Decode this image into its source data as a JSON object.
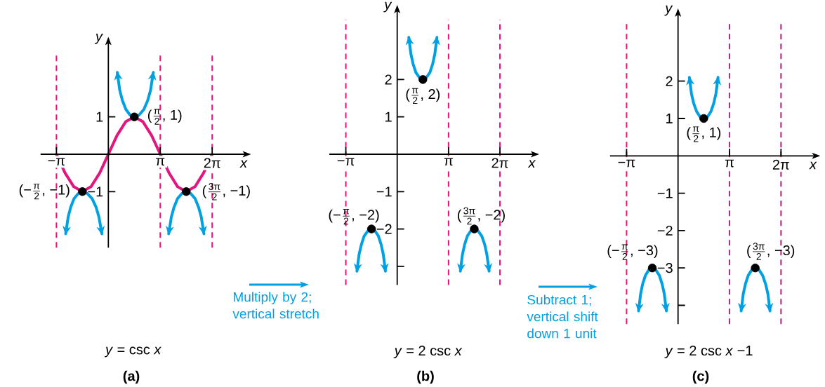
{
  "chart_data": [
    {
      "type": "line",
      "title": "*y* = csc *x*",
      "subtitle": "(a)",
      "xlabel": "x",
      "ylabel": "y",
      "xlim": [
        -4.1,
        8.5
      ],
      "ylim": [
        -2.5,
        2.75
      ],
      "xticks": [
        {
          "value": -3.14,
          "label": "−π"
        },
        {
          "value": 3.14,
          "label": "π"
        },
        {
          "value": 6.28,
          "label": "2π"
        }
      ],
      "yticks": [
        {
          "value": -1,
          "label": "−1"
        },
        1
      ],
      "ref_lines": [
        {
          "axis": "x",
          "value": -3.14,
          "color": "#e3157e",
          "line_style": "dashed"
        },
        {
          "axis": "x",
          "value": 3.14,
          "color": "#e3157e",
          "line_style": "dashed"
        },
        {
          "axis": "x",
          "value": 6.28,
          "color": "#e3157e",
          "line_style": "dashed"
        }
      ],
      "series": [
        {
          "color": "#e3157e",
          "x": [
            -3.14,
            -2.62,
            -2.09,
            -1.57,
            -1.05,
            -0.52,
            0,
            0.52,
            1.05,
            1.57,
            2.09,
            2.62,
            3.14,
            3.67,
            4.19,
            4.71,
            5.24,
            5.76,
            6.28
          ],
          "values": [
            0,
            -0.5,
            -0.87,
            -1,
            -0.87,
            -0.5,
            0,
            0.5,
            0.87,
            1,
            0.87,
            0.5,
            0,
            -0.5,
            -0.87,
            -1,
            -0.87,
            -0.5,
            0
          ]
        },
        {
          "color": "#00a0e3",
          "x": [
            0.54,
            0.69,
            0.85,
            1.06,
            1.31,
            1.57,
            1.86,
            2.15,
            2.38,
            2.55,
            2.72
          ],
          "values": [
            2.19,
            1.71,
            1.44,
            1.2,
            1.05,
            1,
            1.05,
            1.2,
            1.44,
            1.71,
            2.19
          ]
        },
        {
          "color": "#00a0e3",
          "x": [
            -2.58,
            -2.43,
            -2.28,
            -2.08,
            -1.82,
            -1.57,
            -1.28,
            -0.98,
            -0.74,
            -0.57,
            -0.39
          ],
          "values": [
            -2.13,
            -1.68,
            -1.42,
            -1.19,
            -1.05,
            -1,
            -1.05,
            -1.19,
            -1.42,
            -1.68,
            -2.13
          ]
        },
        {
          "color": "#00a0e3",
          "x": [
            3.65,
            3.81,
            3.97,
            4.18,
            4.45,
            4.71,
            4.98,
            5.25,
            5.46,
            5.62,
            5.78
          ],
          "values": [
            -2.13,
            -1.68,
            -1.42,
            -1.19,
            -1.05,
            -1,
            -1.05,
            -1.19,
            -1.42,
            -1.68,
            -2.13
          ]
        },
        {
          "type": "scatter",
          "color": "#000000",
          "marker": "circle",
          "x": [
            -1.57,
            1.57,
            4.71
          ],
          "values": [
            -1,
            1,
            -1
          ]
        }
      ],
      "annotations": [
        {
          "text": "\\text{(}\\tfrac{\\text{π}}{\\text{2}}\\text{, 1)}",
          "x": 1.57,
          "y": 1
        },
        {
          "text": "\\text{(−}\\tfrac{\\text{π}}{\\text{2}}\\text{, −1)}",
          "x": -1.57,
          "y": -1
        },
        {
          "text": "\\text{(}\\tfrac{\\text{3π}}{\\text{2}}\\text{, −1)}",
          "x": 4.71,
          "y": -1
        }
      ]
    },
    {
      "type": "line",
      "title": "*y* = 2 csc *x*",
      "subtitle": "(b)",
      "xlabel": "x",
      "ylabel": "y",
      "xlim": [
        -4.15,
        8.55
      ],
      "ylim": [
        -3.5,
        3.6
      ],
      "xticks": [
        {
          "value": -3.14,
          "label": "−π"
        },
        {
          "value": 3.14,
          "label": "π"
        },
        {
          "value": 6.28,
          "label": "2π"
        }
      ],
      "yticks": [
        {
          "value": -3,
          "label": null
        },
        {
          "value": -2,
          "label": "−2"
        },
        {
          "value": -1,
          "label": "−1"
        },
        1,
        2
      ],
      "ref_lines": [
        {
          "axis": "x",
          "value": -3.14,
          "color": "#e3157e",
          "line_style": "dashed"
        },
        {
          "axis": "x",
          "value": 3.14,
          "color": "#e3157e",
          "line_style": "dashed"
        },
        {
          "axis": "x",
          "value": 6.28,
          "color": "#e3157e",
          "line_style": "dashed"
        }
      ],
      "series": [
        {
          "color": "#00a0e3",
          "x": [
            0.71,
            0.84,
            0.97,
            1.14,
            1.36,
            1.57,
            1.78,
            2.0,
            2.17,
            2.3,
            2.43
          ],
          "values": [
            3.13,
            2.68,
            2.42,
            2.19,
            2.05,
            2,
            2.05,
            2.19,
            2.42,
            2.68,
            3.13
          ]
        },
        {
          "color": "#00a0e3",
          "x": [
            -2.46,
            -2.33,
            -2.19,
            -2.02,
            -1.79,
            -1.57,
            -1.36,
            -1.15,
            -0.98,
            -0.85,
            -0.72
          ],
          "values": [
            -3.13,
            -2.68,
            -2.42,
            -2.19,
            -2.05,
            -2,
            -2.05,
            -2.19,
            -2.42,
            -2.68,
            -3.13
          ]
        },
        {
          "color": "#00a0e3",
          "x": [
            3.86,
            3.99,
            4.12,
            4.29,
            4.5,
            4.71,
            4.94,
            5.17,
            5.35,
            5.48,
            5.62
          ],
          "values": [
            -3.13,
            -2.68,
            -2.42,
            -2.19,
            -2.05,
            -2,
            -2.05,
            -2.19,
            -2.42,
            -2.68,
            -3.13
          ]
        },
        {
          "type": "scatter",
          "color": "#000000",
          "marker": "circle",
          "x": [
            -1.57,
            1.57,
            4.71
          ],
          "values": [
            -2,
            2,
            -2
          ]
        }
      ],
      "annotations": [
        "Multiply by 2; vertical stretch",
        {
          "text": "\\text{(}\\tfrac{\\text{π}}{\\text{2}}\\text{, 2)}",
          "x": 1.57,
          "y": 2
        },
        {
          "text": "\\text{(−}\\tfrac{\\text{π}}{\\text{2}}\\text{, −2)}",
          "x": -1.57,
          "y": -2
        },
        {
          "text": "\\text{(}\\tfrac{\\text{3π}}{\\text{2}}\\text{, −2)}",
          "x": 4.71,
          "y": -2
        }
      ]
    },
    {
      "type": "line",
      "title": "*y* = 2 csc *x* −1",
      "subtitle": "(c)",
      "xlabel": "x",
      "ylabel": "y",
      "xlim": [
        -4.15,
        8.55
      ],
      "ylim": [
        -4.5,
        3.55
      ],
      "xticks": [
        {
          "value": -3.14,
          "label": "−π"
        },
        {
          "value": 3.14,
          "label": "π"
        },
        {
          "value": 6.28,
          "label": "2π"
        }
      ],
      "yticks": [
        {
          "value": -4,
          "label": null
        },
        {
          "value": -3,
          "label": "−3"
        },
        {
          "value": -2,
          "label": "−2"
        },
        {
          "value": -1,
          "label": "−1"
        },
        1,
        2
      ],
      "ref_lines": [
        {
          "axis": "x",
          "value": -3.14,
          "color": "#e3157e",
          "line_style": "dashed"
        },
        {
          "axis": "x",
          "value": 3.14,
          "color": "#e3157e",
          "line_style": "dashed"
        },
        {
          "axis": "x",
          "value": 6.28,
          "color": "#e3157e",
          "line_style": "dashed"
        }
      ],
      "series": [
        {
          "color": "#00a0e3",
          "x": [
            0.69,
            0.82,
            0.95,
            1.13,
            1.35,
            1.57,
            1.79,
            2.01,
            2.18,
            2.31,
            2.44
          ],
          "values": [
            2.1,
            1.66,
            1.41,
            1.19,
            1.04,
            1,
            1.04,
            1.19,
            1.41,
            1.66,
            2.1
          ]
        },
        {
          "color": "#00a0e3",
          "x": [
            -2.41,
            -2.28,
            -2.16,
            -1.99,
            -1.78,
            -1.57,
            -1.36,
            -1.14,
            -0.97,
            -0.84,
            -0.71
          ],
          "values": [
            -4.15,
            -3.69,
            -3.43,
            -3.2,
            -3.05,
            -3,
            -3.05,
            -3.2,
            -3.43,
            -3.69,
            -4.15
          ]
        },
        {
          "color": "#00a0e3",
          "x": [
            3.85,
            3.98,
            4.11,
            4.28,
            4.5,
            4.71,
            4.94,
            5.16,
            5.34,
            5.48,
            5.61
          ],
          "values": [
            -4.15,
            -3.69,
            -3.43,
            -3.2,
            -3.05,
            -3,
            -3.05,
            -3.2,
            -3.43,
            -3.69,
            -4.15
          ]
        },
        {
          "type": "scatter",
          "color": "#000000",
          "marker": "circle",
          "x": [
            -1.57,
            1.57,
            4.71
          ],
          "values": [
            -3,
            1,
            -3
          ]
        }
      ],
      "annotations": [
        "Subtract 1; vertical shift down 1 unit",
        {
          "text": "\\text{(}\\tfrac{\\text{π}}{\\text{2}}\\text{, 1)}",
          "x": 1.57,
          "y": 1
        },
        {
          "text": "\\text{(−}\\tfrac{\\text{π}}{\\text{2}}\\text{, −3)}",
          "x": -1.57,
          "y": -3
        },
        {
          "text": "\\text{(}\\tfrac{\\text{3π}}{\\text{2}}\\text{, −3)}",
          "x": 4.71,
          "y": -3
        }
      ]
    }
  ]
}
